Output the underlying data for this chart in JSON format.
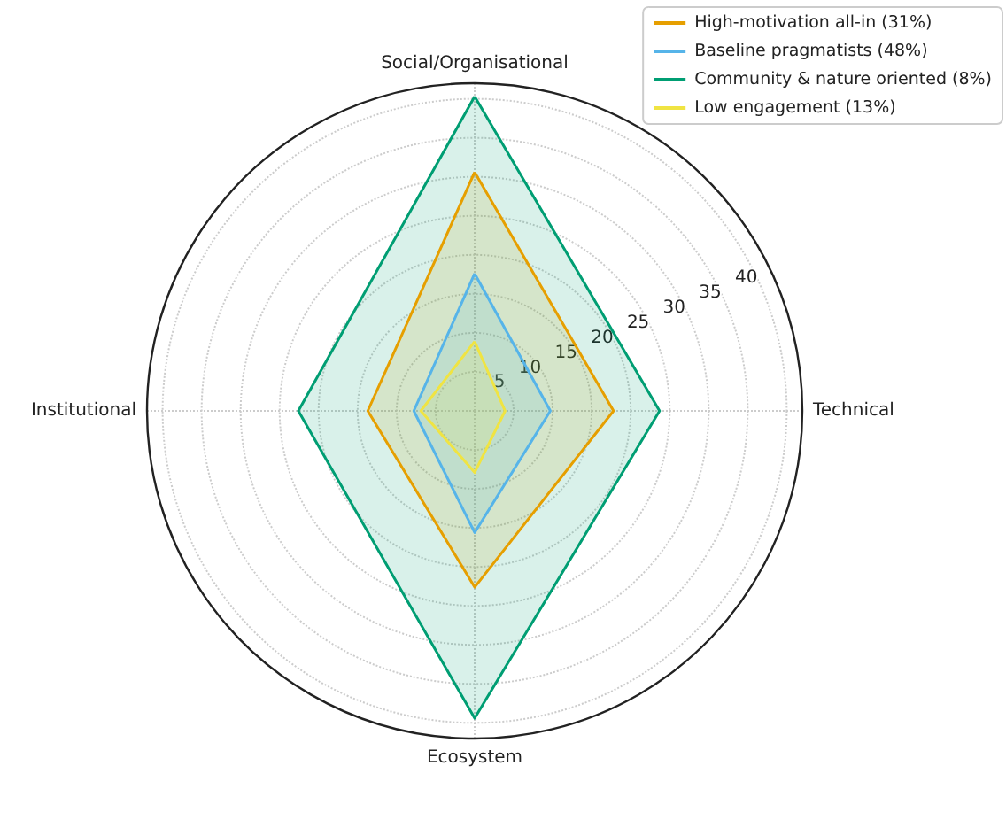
{
  "chart_data": {
    "type": "radar",
    "categories": [
      "Social/Organisational",
      "Technical",
      "Ecosystem",
      "Institutional"
    ],
    "series": [
      {
        "name": "High-motivation all-in (31%)",
        "color": "#e69f00",
        "values": [
          30.6,
          17.8,
          22.6,
          13.7
        ]
      },
      {
        "name": "Baseline pragmatists (48%)",
        "color": "#56b4e9",
        "values": [
          17.6,
          9.7,
          15.6,
          7.8
        ]
      },
      {
        "name": "Community & nature oriented (8%)",
        "color": "#009e73",
        "values": [
          40.3,
          23.7,
          39.4,
          22.6
        ]
      },
      {
        "name": "Low engagement (13%)",
        "color": "#f0e442",
        "values": [
          8.9,
          3.9,
          7.9,
          6.9
        ]
      }
    ],
    "ylim": [
      0,
      42
    ],
    "yticks": [
      5,
      10,
      15,
      20,
      25,
      30,
      35,
      40
    ],
    "grid": true,
    "legend": "top right",
    "marker": "none",
    "line_style": "solid"
  }
}
